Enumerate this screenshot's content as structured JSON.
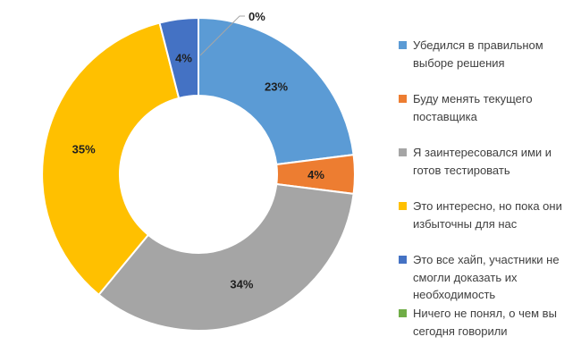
{
  "chart_data": {
    "type": "pie",
    "subtype": "donut",
    "title": "",
    "hole_ratio": 0.5,
    "start_angle_deg": 0,
    "direction": "clockwise",
    "legend_position": "right",
    "background_color": "#FFFFFF",
    "separator_color": "#FFFFFF",
    "data_label_color": "#1f1f1f",
    "leader_line_color": "#A6A6A6",
    "categories": [
      "Убедился в правильном выборе решения",
      "Буду менять текущего поставщика",
      "Я заинтересовался ими и готов тестировать",
      "Это интересно, но пока они избыточны для нас",
      "Это все хайп, участники не смогли доказать их необходимость",
      "Ничего не понял, о чем вы сегодня говорили"
    ],
    "values": [
      23,
      4,
      34,
      35,
      4,
      0
    ],
    "slices": [
      {
        "label": "Убедился в правильном выборе решения",
        "value": 23,
        "data_label": "23%",
        "color": "#5B9BD5"
      },
      {
        "label": "Буду менять текущего поставщика",
        "value": 4,
        "data_label": "4%",
        "color": "#ED7D31"
      },
      {
        "label": "Я заинтересовался ими и готов тестировать",
        "value": 34,
        "data_label": "34%",
        "color": "#A5A5A5"
      },
      {
        "label": "Это интересно, но пока они избыточны для нас",
        "value": 35,
        "data_label": "35%",
        "color": "#FFC000"
      },
      {
        "label": "Это все хайп, участники не смогли доказать их необходимость",
        "value": 4,
        "data_label": "4%",
        "color": "#4472C4"
      },
      {
        "label": "Ничего не понял, о чем вы сегодня говорили",
        "value": 0,
        "data_label": "0%",
        "color": "#70AD47"
      }
    ]
  },
  "legend": {
    "text_color": "#404040",
    "items": [
      {
        "label": "Убедился в правильном выборе решения",
        "color": "#5B9BD5"
      },
      {
        "label": "Буду менять текущего поставщика",
        "color": "#ED7D31"
      },
      {
        "label": "Я заинтересовался ими и готов тестировать",
        "color": "#A5A5A5"
      },
      {
        "label": "Это интересно, но пока они избыточны для нас",
        "color": "#FFC000"
      },
      {
        "label": "Это все хайп, участники не смогли доказать их необходимость",
        "color": "#4472C4"
      },
      {
        "label": "Ничего не понял, о чем вы сегодня говорили",
        "color": "#70AD47"
      }
    ]
  }
}
